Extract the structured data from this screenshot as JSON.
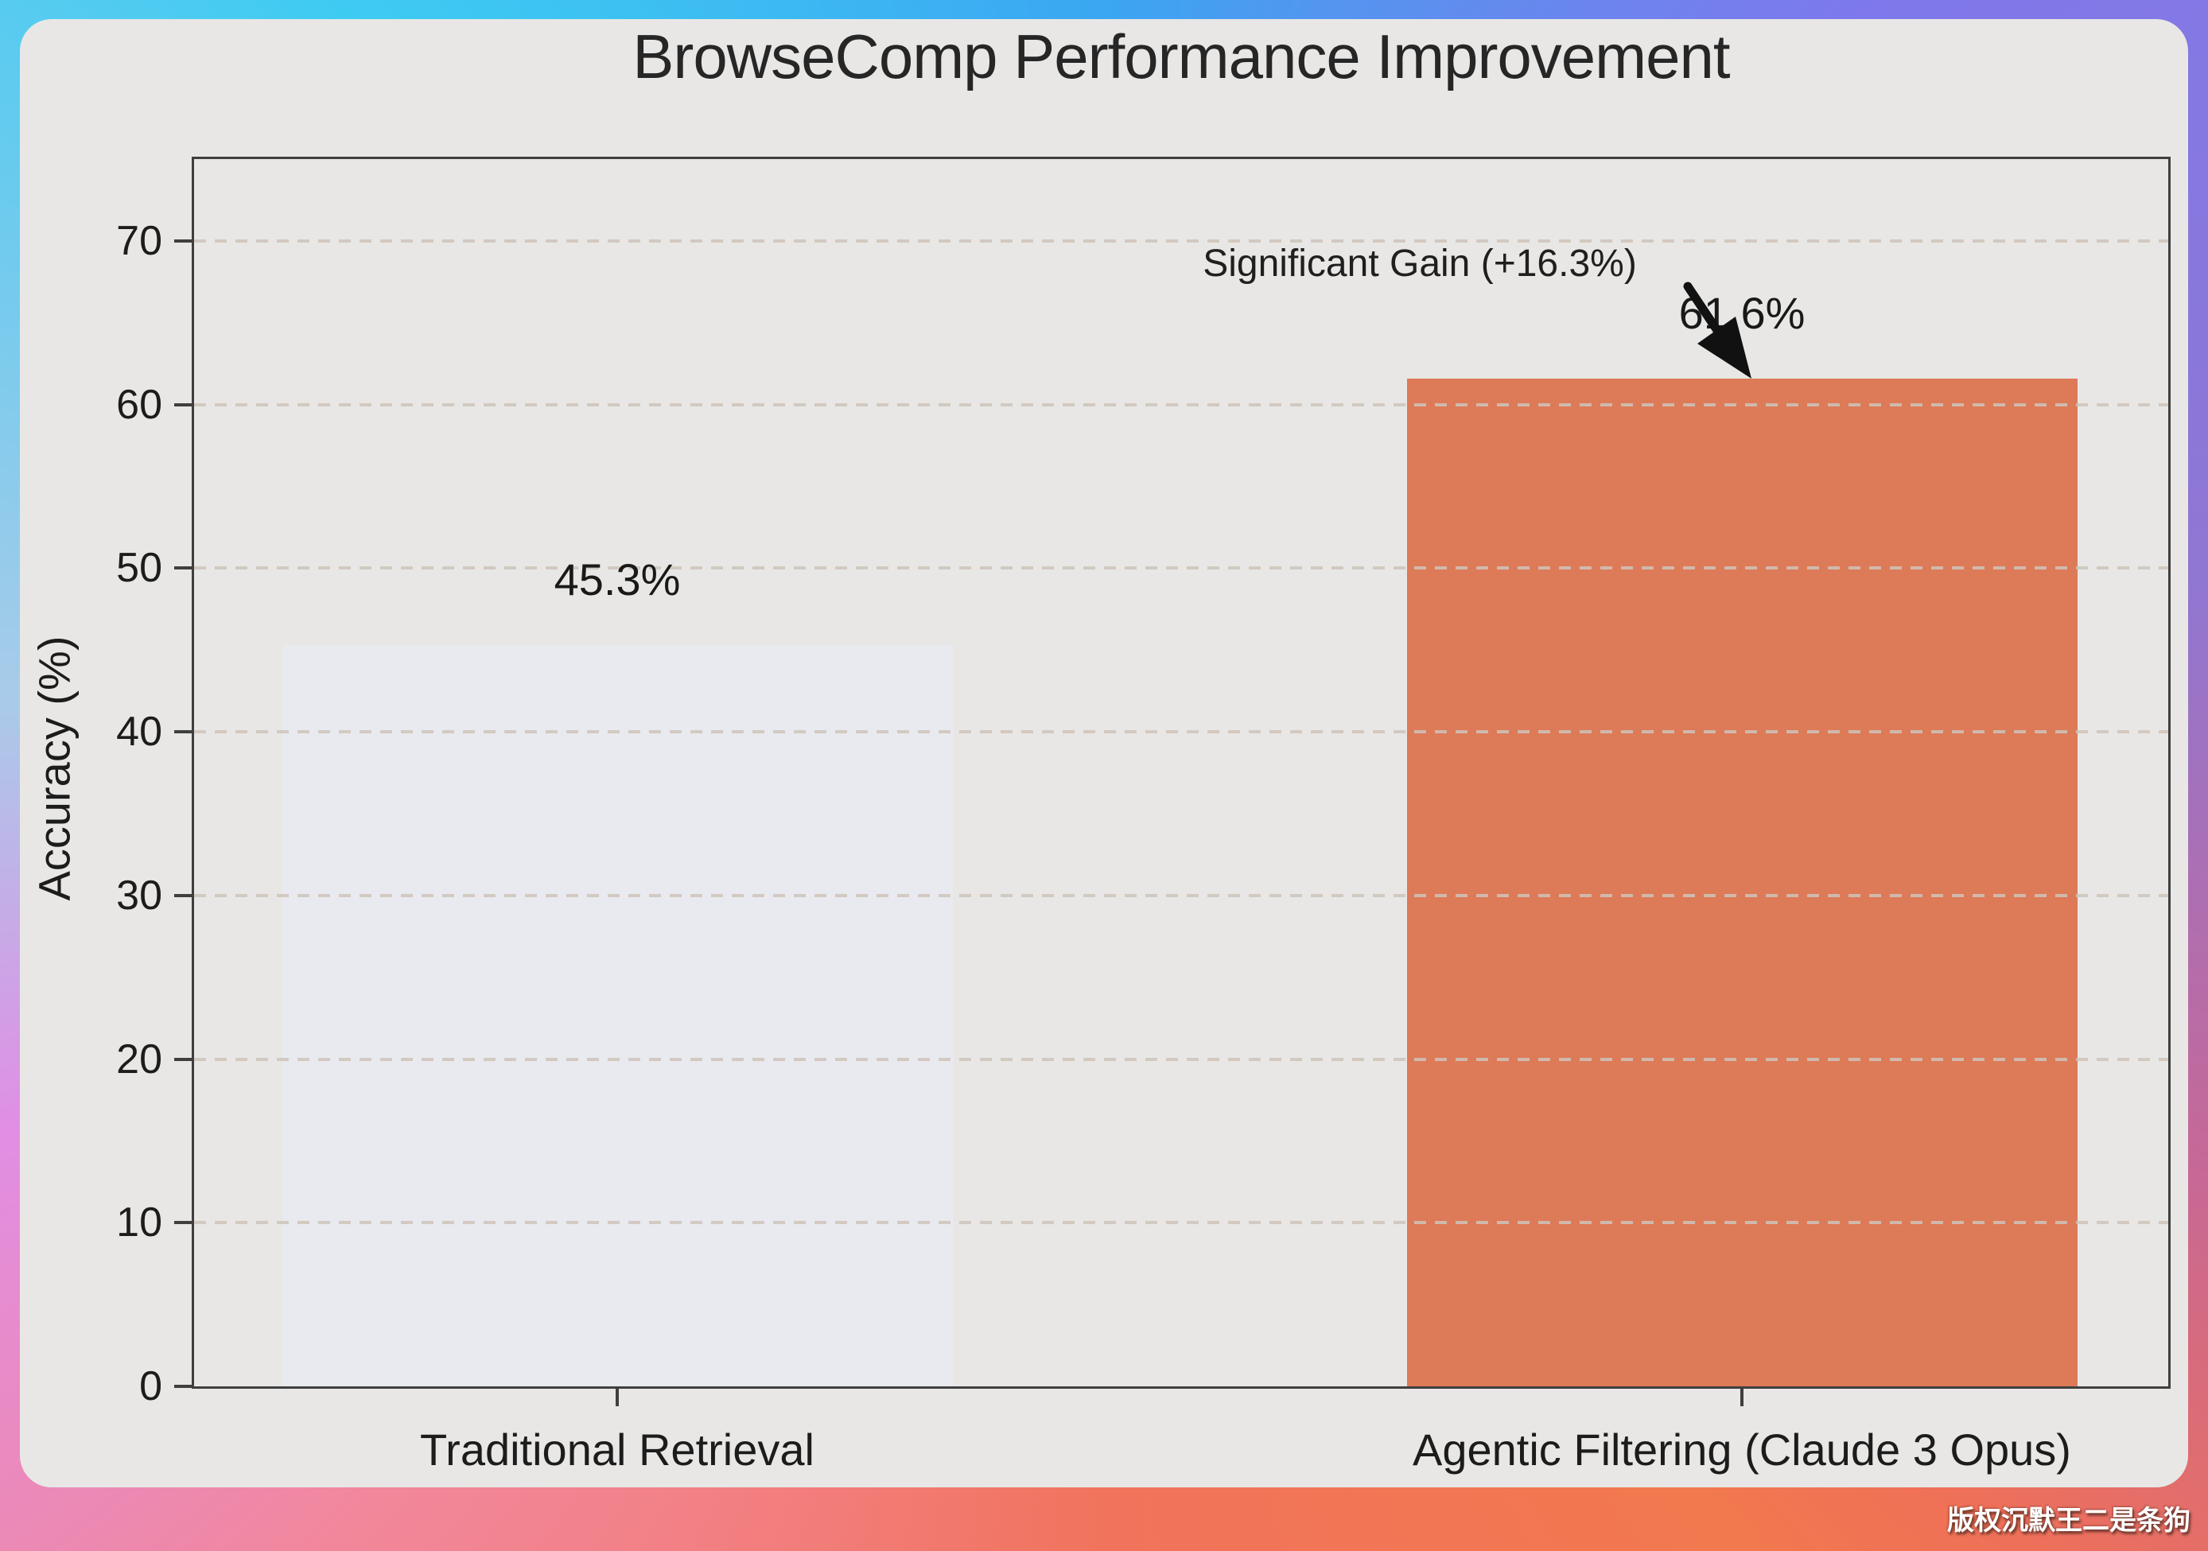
{
  "chart_data": {
    "type": "bar",
    "title": "BrowseComp Performance Improvement",
    "categories": [
      "Traditional Retrieval",
      "Agentic Filtering (Claude 3 Opus)"
    ],
    "values": [
      45.3,
      61.6
    ],
    "value_labels": [
      "45.3%",
      "61.6%"
    ],
    "bar_colors": [
      "#e9eaef",
      "#dd7a58"
    ],
    "ylabel": "Accuracy (%)",
    "xlabel": "",
    "ylim": [
      0,
      75
    ],
    "yticks": [
      0,
      10,
      20,
      30,
      40,
      50,
      60,
      70
    ],
    "grid": "horizontal-dashed",
    "legend": "none",
    "annotation": {
      "text": "Significant Gain (+16.3%)",
      "points_to": "Agentic Filtering (Claude 3 Opus)"
    }
  },
  "watermark": "版权沉默王二是条狗",
  "colors": {
    "card_background": "#e8e7e5",
    "bar_traditional": "#e9eaef",
    "bar_agentic": "#dd7a58",
    "axis_spine": "#3f3f3f",
    "text": "#1c1c1c",
    "frame_top_left": "#3ecbf2",
    "frame_top_right": "#7e78ec",
    "frame_bottom_left": "#f2879b",
    "frame_bottom_right": "#f2784e"
  }
}
